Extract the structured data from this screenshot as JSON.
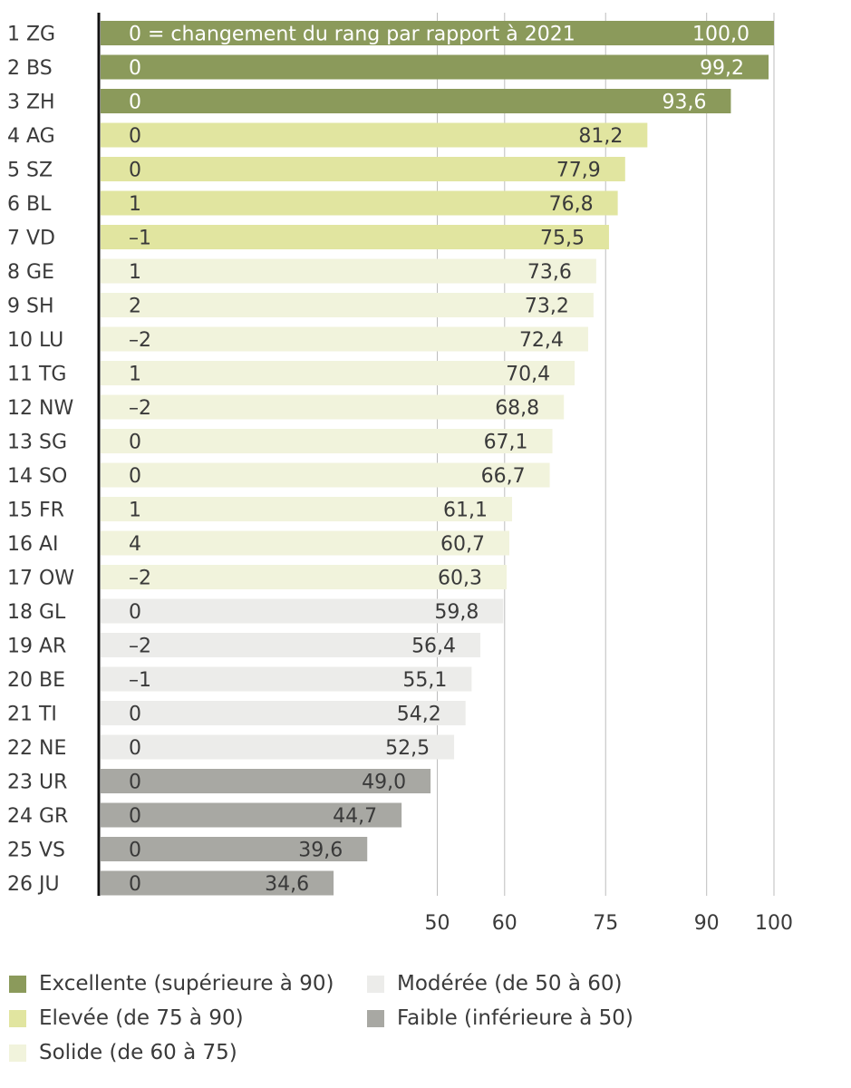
{
  "chart_data": {
    "type": "bar",
    "orientation": "horizontal",
    "note": "0 = changement du rang par rapport à 2021",
    "xlim": [
      0,
      100
    ],
    "xticks": [
      50,
      60,
      75,
      90,
      100
    ],
    "grid": true,
    "categories": [
      "1 ZG",
      "2 BS",
      "3 ZH",
      "4 AG",
      "5 SZ",
      "6 BL",
      "7 VD",
      "8 GE",
      "9 SH",
      "10 LU",
      "11 TG",
      "12 NW",
      "13 SG",
      "14 SO",
      "15 FR",
      "16 AI",
      "17 OW",
      "18 GL",
      "19 AR",
      "20 BE",
      "21 TI",
      "22 NE",
      "23 UR",
      "24 GR",
      "25 VS",
      "26 JU"
    ],
    "values": [
      100.0,
      99.2,
      93.6,
      81.2,
      77.9,
      76.8,
      75.5,
      73.6,
      73.2,
      72.4,
      70.4,
      68.8,
      67.1,
      66.7,
      61.1,
      60.7,
      60.3,
      59.8,
      56.4,
      55.1,
      54.2,
      52.5,
      49.0,
      44.7,
      39.6,
      34.6
    ],
    "value_labels": [
      "100,0",
      "99,2",
      "93,6",
      "81,2",
      "77,9",
      "76,8",
      "75,5",
      "73,6",
      "73,2",
      "72,4",
      "70,4",
      "68,8",
      "67,1",
      "66,7",
      "61,1",
      "60,7",
      "60,3",
      "59,8",
      "56,4",
      "55,1",
      "54,2",
      "52,5",
      "49,0",
      "44,7",
      "39,6",
      "34,6"
    ],
    "rank_changes": [
      "0",
      "0",
      "0",
      "0",
      "0",
      "1",
      "–1",
      "1",
      "2",
      "–2",
      "1",
      "–2",
      "0",
      "0",
      "1",
      "4",
      "–2",
      "0",
      "–2",
      "–1",
      "0",
      "0",
      "0",
      "0",
      "0",
      "0"
    ],
    "classes": [
      "excellent",
      "excellent",
      "excellent",
      "high",
      "high",
      "high",
      "high",
      "solid",
      "solid",
      "solid",
      "solid",
      "solid",
      "solid",
      "solid",
      "solid",
      "solid",
      "solid",
      "moderate",
      "moderate",
      "moderate",
      "moderate",
      "moderate",
      "weak",
      "weak",
      "weak",
      "weak"
    ]
  },
  "legend": [
    {
      "key": "excellent",
      "label": "Excellente (supérieure à 90)",
      "color": "#8b9a5b"
    },
    {
      "key": "high",
      "label": "Elevée (de 75 à 90)",
      "color": "#e1e5a0"
    },
    {
      "key": "solid",
      "label": "Solide (de 60 à 75)",
      "color": "#f1f3dc"
    },
    {
      "key": "moderate",
      "label": "Modérée (de 50 à 60)",
      "color": "#ececea"
    },
    {
      "key": "weak",
      "label": "Faible (inférieure à 50)",
      "color": "#a8a8a3"
    }
  ],
  "colors": {
    "excellent_text": "#ffffff",
    "other_text": "#3a3a3a",
    "axis": "#111111",
    "grid": "#bdbdbd"
  }
}
